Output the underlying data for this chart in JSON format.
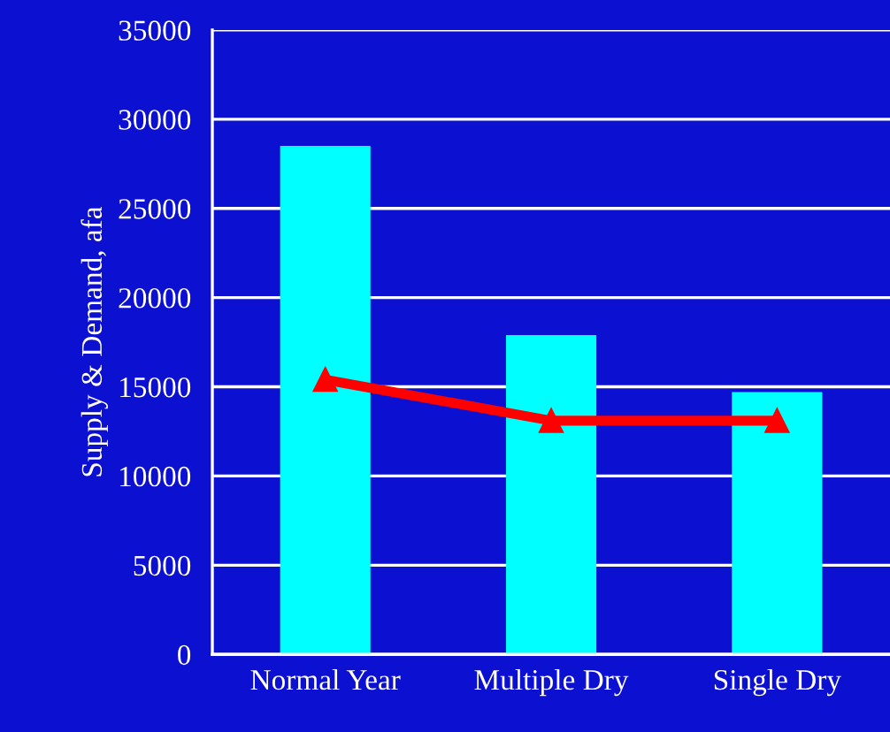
{
  "chart_data": {
    "type": "bar",
    "ylabel": "Supply & Demand, afa",
    "categories": [
      "Normal Year",
      "Multiple Dry",
      "Single Dry"
    ],
    "series": [
      {
        "color": "#00ffff",
        "values": [
          28500,
          17900,
          14700
        ]
      },
      {
        "type": "line",
        "color": "#ff0000",
        "values": [
          15400,
          13100,
          13100
        ],
        "marker": "triangle"
      }
    ],
    "ylim": [
      0,
      35000
    ],
    "yticks": [
      0,
      5000,
      10000,
      15000,
      20000,
      25000,
      30000,
      35000
    ],
    "grid": "y",
    "legend": false
  }
}
